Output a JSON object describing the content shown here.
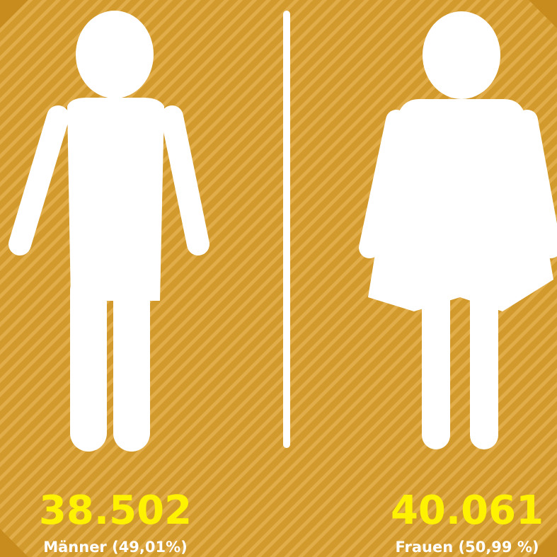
{
  "men": {
    "count": "38.502",
    "label": "Männer (49,01%)"
  },
  "women": {
    "count": "40.061",
    "label": "Frauen (50,99 %)"
  }
}
